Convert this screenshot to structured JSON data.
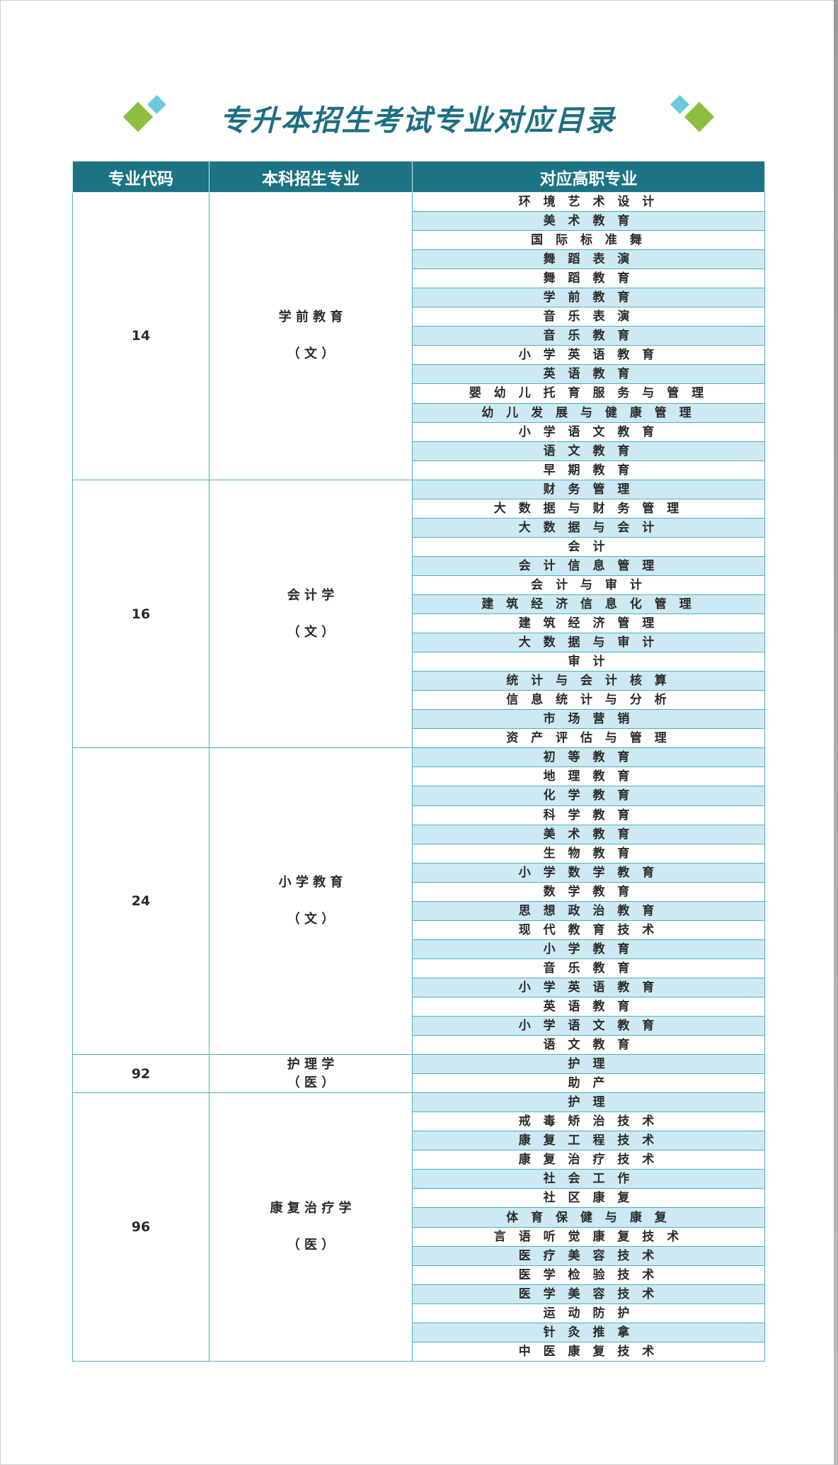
{
  "title": "专升本招生考试专业对应目录",
  "colors": {
    "title": "#1d6f82",
    "header_bg": "#1b7384",
    "stripe": "#cde9f3",
    "border": "#52aec0",
    "accent_green": "#8dbf3f",
    "accent_blue": "#6ec8dc"
  },
  "headers": {
    "code": "专业代码",
    "major": "本科招生专业",
    "vocational": "对应高职专业"
  },
  "groups": [
    {
      "code": "14",
      "name": "学 前 教 育",
      "category": "（ 文 ）",
      "subs": [
        "环 境 艺 术 设 计",
        "美 术 教 育",
        "国 际 标 准 舞",
        "舞 蹈 表 演",
        "舞 蹈 教 育",
        "学 前 教 育",
        "音 乐 表 演",
        "音 乐 教 育",
        "小 学 英 语 教 育",
        "英 语 教 育",
        "婴 幼 儿 托 育 服 务 与 管 理",
        "幼 儿 发 展 与 健 康 管 理",
        "小 学 语 文 教 育",
        "语 文 教 育",
        "早 期 教 育"
      ]
    },
    {
      "code": "16",
      "name": "会 计 学",
      "category": "（ 文 ）",
      "subs": [
        "财 务 管 理",
        "大 数 据 与 财 务 管 理",
        "大 数 据 与 会 计",
        "会 计",
        "会 计 信 息 管 理",
        "会 计 与 审 计",
        "建 筑 经 济 信 息 化 管 理",
        "建 筑 经 济 管 理",
        "大 数 据 与 审 计",
        "审 计",
        "统 计 与 会 计 核 算",
        "信 息 统 计 与 分 析",
        "市 场 营 销",
        "资 产 评 估 与 管 理"
      ]
    },
    {
      "code": "24",
      "name": "小 学 教 育",
      "category": "（ 文 ）",
      "subs": [
        "初 等 教 育",
        "地 理 教 育",
        "化 学 教 育",
        "科 学 教 育",
        "美 术 教 育",
        "生 物 教 育",
        "小 学 数 学 教 育",
        "数 学 教 育",
        "思 想 政 治 教 育",
        "现 代 教 育 技 术",
        "小 学 教 育",
        "音 乐 教 育",
        "小 学 英 语 教 育",
        "英 语 教 育",
        "小 学 语 文 教 育",
        "语 文 教 育"
      ]
    },
    {
      "code": "92",
      "name": "护 理 学",
      "category": "（ 医 ）",
      "subs": [
        "护 理",
        "助 产"
      ]
    },
    {
      "code": "96",
      "name": "康 复 治 疗 学",
      "category": "（ 医 ）",
      "subs": [
        "护 理",
        "戒 毒 矫 治 技 术",
        "康 复 工 程 技 术",
        "康 复 治 疗 技 术",
        "社 会 工 作",
        "社 区 康 复",
        "体 育 保 健 与 康 复",
        "言 语 听 觉 康 复 技 术",
        "医 疗 美 容 技 术",
        "医 学 检 验 技 术",
        "医 学 美 容 技 术",
        "运 动 防 护",
        "针 灸 推 拿",
        "中 医 康 复 技 术"
      ]
    }
  ]
}
